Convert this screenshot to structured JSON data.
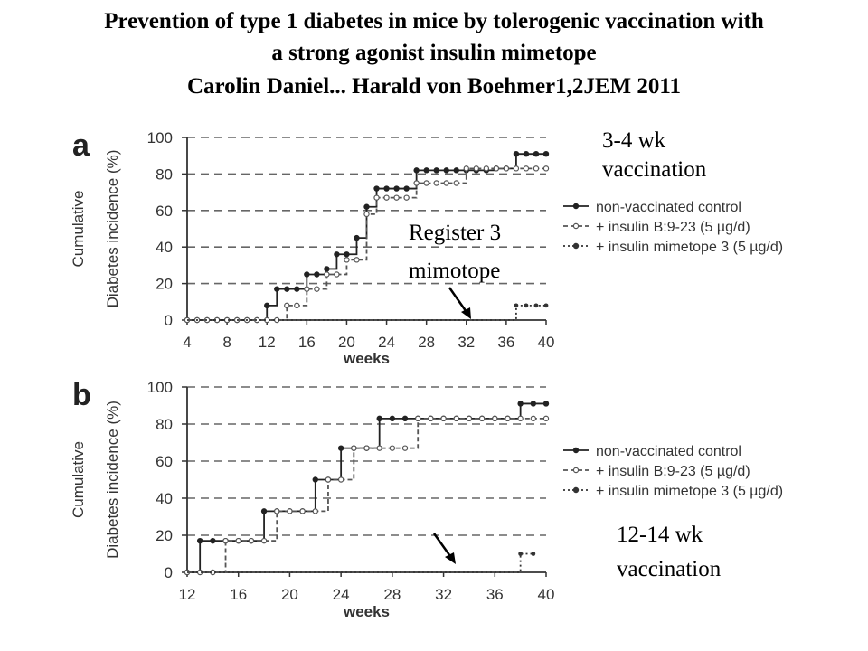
{
  "title": {
    "line1": "Prevention of type 1 diabetes in mice by tolerogenic vaccination with",
    "line2": "a strong agonist insulin mimetope",
    "line3": "Carolin Daniel... Harald von Boehmer1,2JEM 2011"
  },
  "annotations": {
    "a_note_1": "3-4 wk",
    "a_note_2": "vaccination",
    "register_1": "Register 3",
    "register_2": "mimotope",
    "b_note_1": "12-14 wk",
    "b_note_2": "vaccination"
  },
  "chart_data": [
    {
      "type": "line",
      "step": true,
      "panel_label": "a",
      "xlabel": "weeks",
      "ylabel_line1": "Cumulative",
      "ylabel_line2": "Diabetes incidence (%)",
      "xlim": [
        4,
        40
      ],
      "ylim": [
        0,
        100
      ],
      "xticks": [
        4,
        8,
        12,
        16,
        20,
        24,
        28,
        32,
        36,
        40
      ],
      "yticks": [
        0,
        20,
        40,
        60,
        80,
        100
      ],
      "grid": "horizontal-dashed",
      "legend_position": "right",
      "series": [
        {
          "name": "non-vaccinated control",
          "style": "solid",
          "color": "#222222",
          "marker": "filled",
          "x": [
            4,
            5,
            6,
            7,
            8,
            9,
            10,
            11,
            12,
            13,
            14,
            15,
            16,
            17,
            18,
            19,
            20,
            21,
            22,
            23,
            24,
            25,
            26,
            27,
            28,
            29,
            30,
            31,
            32,
            33,
            34,
            35,
            36,
            37,
            38,
            39,
            40
          ],
          "y": [
            0,
            0,
            0,
            0,
            0,
            0,
            0,
            0,
            8,
            17,
            17,
            17,
            25,
            25,
            28,
            36,
            36,
            45,
            62,
            72,
            72,
            72,
            72,
            82,
            82,
            82,
            82,
            82,
            82,
            82,
            82,
            83,
            83,
            91,
            91,
            91,
            91
          ]
        },
        {
          "name": "+ insulin B:9-23 (5 µg/d)",
          "style": "dashed",
          "color": "#555555",
          "marker": "open",
          "x": [
            4,
            5,
            6,
            7,
            8,
            9,
            10,
            11,
            12,
            13,
            14,
            15,
            16,
            17,
            18,
            19,
            20,
            21,
            22,
            23,
            24,
            25,
            26,
            27,
            28,
            29,
            30,
            31,
            32,
            33,
            34,
            35,
            36,
            37,
            38,
            39,
            40
          ],
          "y": [
            0,
            0,
            0,
            0,
            0,
            0,
            0,
            0,
            0,
            0,
            8,
            8,
            17,
            17,
            25,
            25,
            33,
            33,
            58,
            67,
            67,
            67,
            67,
            75,
            75,
            75,
            75,
            75,
            83,
            83,
            83,
            83,
            83,
            83,
            83,
            83,
            83
          ]
        },
        {
          "name": "+ insulin mimetope 3 (5 µg/d)",
          "style": "dotted",
          "color": "#333333",
          "marker": "filled",
          "x": [
            4,
            8,
            12,
            16,
            20,
            24,
            28,
            32,
            36,
            37,
            38,
            39,
            40
          ],
          "y": [
            0,
            0,
            0,
            0,
            0,
            0,
            0,
            0,
            0,
            8,
            8,
            8,
            8
          ]
        }
      ]
    },
    {
      "type": "line",
      "step": true,
      "panel_label": "b",
      "xlabel": "weeks",
      "ylabel_line1": "Cumulative",
      "ylabel_line2": "Diabetes incidence (%)",
      "xlim": [
        12,
        40
      ],
      "ylim": [
        0,
        100
      ],
      "xticks": [
        12,
        16,
        20,
        24,
        28,
        32,
        36,
        40
      ],
      "yticks": [
        0,
        20,
        40,
        60,
        80,
        100
      ],
      "grid": "horizontal-dashed",
      "legend_position": "right",
      "series": [
        {
          "name": "non-vaccinated control",
          "style": "solid",
          "color": "#222222",
          "marker": "filled",
          "x": [
            12,
            13,
            14,
            15,
            16,
            17,
            18,
            19,
            20,
            21,
            22,
            23,
            24,
            25,
            26,
            27,
            28,
            29,
            30,
            31,
            32,
            33,
            34,
            35,
            36,
            37,
            38,
            39,
            40
          ],
          "y": [
            0,
            17,
            17,
            17,
            17,
            17,
            33,
            33,
            33,
            33,
            50,
            50,
            67,
            67,
            67,
            83,
            83,
            83,
            83,
            83,
            83,
            83,
            83,
            83,
            83,
            83,
            91,
            91,
            91
          ]
        },
        {
          "name": "+ insulin B:9-23 (5 µg/d)",
          "style": "dashed",
          "color": "#555555",
          "marker": "open",
          "x": [
            12,
            13,
            14,
            15,
            16,
            17,
            18,
            19,
            20,
            21,
            22,
            23,
            24,
            25,
            26,
            27,
            28,
            29,
            30,
            31,
            32,
            33,
            34,
            35,
            36,
            37,
            38,
            39,
            40
          ],
          "y": [
            0,
            0,
            0,
            17,
            17,
            17,
            17,
            33,
            33,
            33,
            33,
            50,
            50,
            67,
            67,
            67,
            67,
            67,
            83,
            83,
            83,
            83,
            83,
            83,
            83,
            83,
            83,
            83,
            83
          ]
        },
        {
          "name": "+ insulin mimetope 3 (5 µg/d)",
          "style": "dotted",
          "color": "#333333",
          "marker": "filled",
          "x": [
            12,
            16,
            20,
            24,
            28,
            32,
            36,
            38,
            39
          ],
          "y": [
            0,
            0,
            0,
            0,
            0,
            0,
            0,
            10,
            10
          ]
        }
      ]
    }
  ]
}
